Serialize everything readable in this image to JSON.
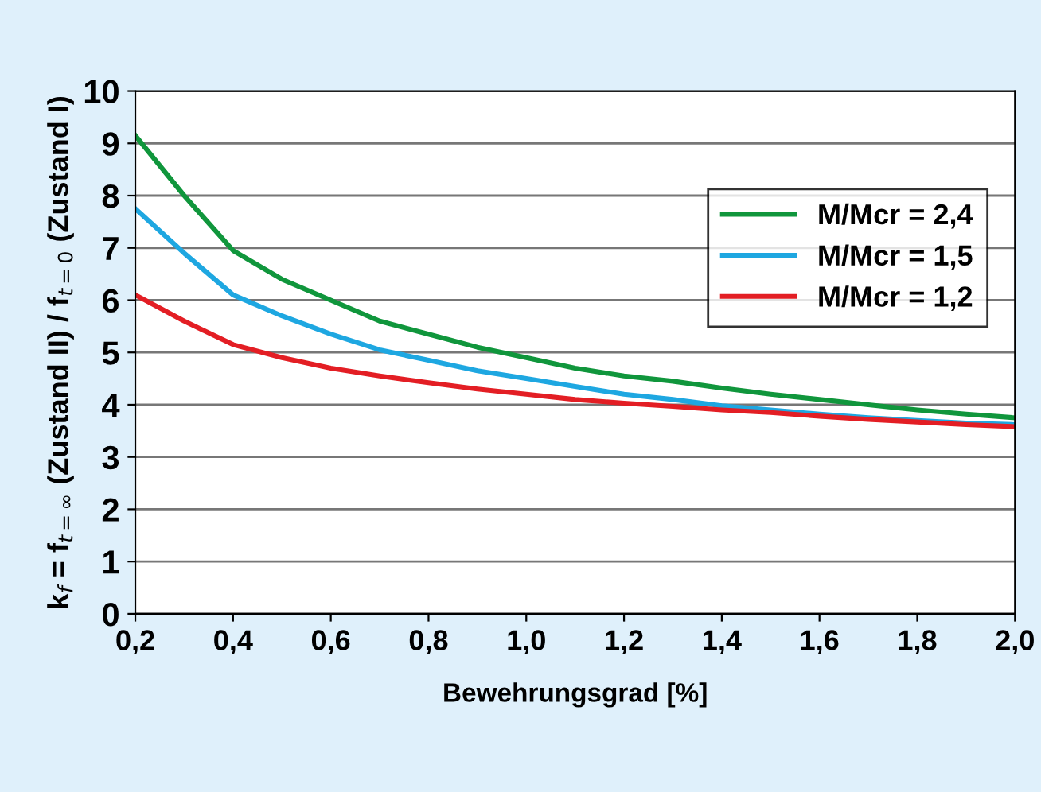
{
  "chart_data": {
    "type": "line",
    "xlabel": "Bewehrungsgrad [%]",
    "ylabel": "k$_{f}$ = f$_{t=∞}$ (Zustand II) / f$_{t=0}$ (Zustand I)",
    "x": [
      0.2,
      0.3,
      0.4,
      0.5,
      0.6,
      0.7,
      0.8,
      0.9,
      1.0,
      1.1,
      1.2,
      1.3,
      1.4,
      1.5,
      1.6,
      1.7,
      1.8,
      1.9,
      2.0
    ],
    "series": [
      {
        "name": "M/Mcr = 2,4",
        "color": "#10963c",
        "values": [
          9.15,
          8.0,
          6.95,
          6.4,
          6.0,
          5.6,
          5.35,
          5.1,
          4.9,
          4.7,
          4.55,
          4.45,
          4.32,
          4.2,
          4.1,
          4.0,
          3.9,
          3.82,
          3.75
        ]
      },
      {
        "name": "M/Mcr = 1,5",
        "color": "#1ea7e1",
        "values": [
          7.75,
          6.9,
          6.1,
          5.7,
          5.35,
          5.05,
          4.85,
          4.65,
          4.5,
          4.35,
          4.2,
          4.1,
          3.98,
          3.9,
          3.82,
          3.75,
          3.7,
          3.65,
          3.62
        ]
      },
      {
        "name": "M/Mcr = 1,2",
        "color": "#e31e24",
        "values": [
          6.1,
          5.6,
          5.15,
          4.9,
          4.7,
          4.55,
          4.42,
          4.3,
          4.2,
          4.1,
          4.03,
          3.97,
          3.9,
          3.85,
          3.78,
          3.72,
          3.67,
          3.62,
          3.58
        ]
      }
    ],
    "xlim": [
      0.2,
      2.0
    ],
    "xticks": [
      {
        "value": 0.2,
        "label": "0,2"
      },
      {
        "value": 0.4,
        "label": "0,4"
      },
      {
        "value": 0.6,
        "label": "0,6"
      },
      {
        "value": 0.8,
        "label": "0,8"
      },
      {
        "value": 1.0,
        "label": "1,0"
      },
      {
        "value": 1.2,
        "label": "1,2"
      },
      {
        "value": 1.4,
        "label": "1,4"
      },
      {
        "value": 1.6,
        "label": "1,6"
      },
      {
        "value": 1.8,
        "label": "1,8"
      },
      {
        "value": 2.0,
        "label": "2,0"
      }
    ],
    "ylim": [
      0,
      10
    ],
    "yticks": [
      0,
      1,
      2,
      3,
      4,
      5,
      6,
      7,
      8,
      9,
      10
    ],
    "grid": "y",
    "legend": "top right",
    "marker": "none",
    "line_style": "solid"
  }
}
